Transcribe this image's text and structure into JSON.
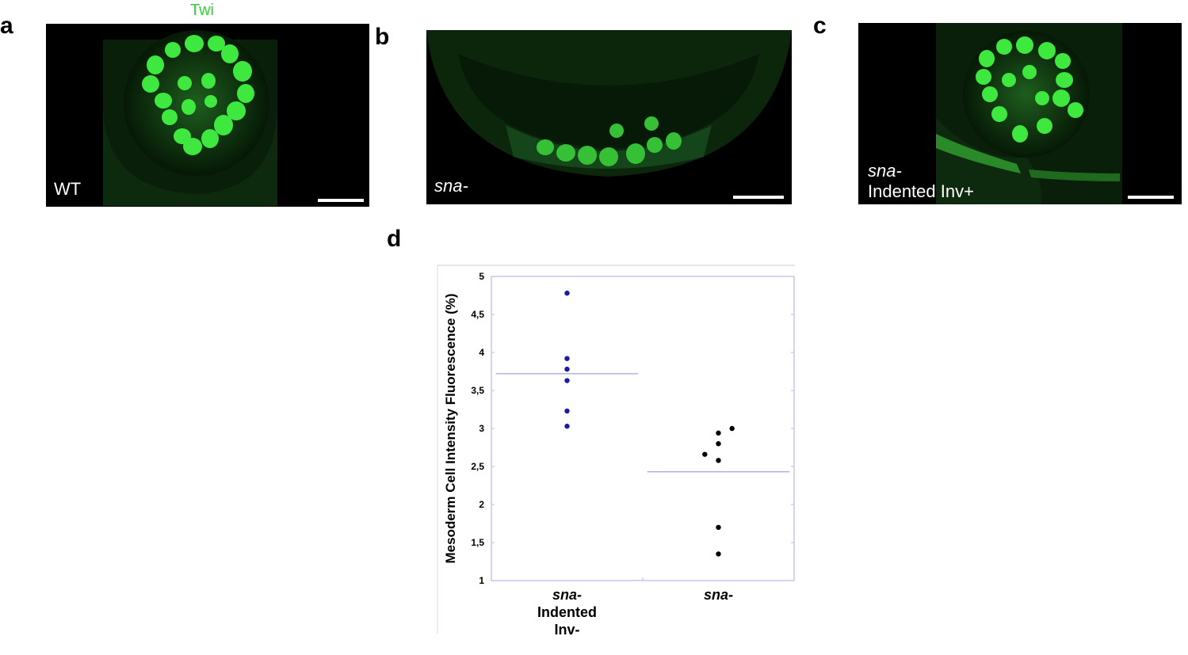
{
  "panels": {
    "a": {
      "letter": "a",
      "stain": "Twi",
      "genotype": "WT"
    },
    "b": {
      "letter": "b",
      "genotype": "sna-"
    },
    "c": {
      "letter": "c",
      "genotype_line1": "sna-",
      "genotype_line2": "Indented Inv+"
    },
    "d": {
      "letter": "d"
    }
  },
  "colors": {
    "stain_green": "#38d038",
    "nucleus_green": "#3ee83e",
    "series1": "#1a1aa8",
    "series2": "#000000",
    "mean_line": "#8a8ae0",
    "plot_frame": "#b8b8e8"
  },
  "chart_data": {
    "type": "scatter",
    "ylabel": "Mesoderm Cell Intensity Fluorescence (%)",
    "xlabel": "",
    "ylim": [
      1,
      5
    ],
    "yticks": [
      "1",
      "1,5",
      "2",
      "2,5",
      "3",
      "3,5",
      "4",
      "4,5",
      "5"
    ],
    "categories": [
      {
        "line1": "sna-",
        "line2": "Indented",
        "line3": "Inv-"
      },
      {
        "line1": "sna-",
        "line2": "",
        "line3": ""
      }
    ],
    "series": [
      {
        "category": 0,
        "color": "#1a1aa8",
        "mean": 3.72,
        "points": [
          {
            "x": 0,
            "y": 4.78
          },
          {
            "x": 0,
            "y": 3.92
          },
          {
            "x": 0,
            "y": 3.78
          },
          {
            "x": 0,
            "y": 3.63
          },
          {
            "x": 0,
            "y": 3.23
          },
          {
            "x": 0,
            "y": 3.03
          }
        ]
      },
      {
        "category": 1,
        "color": "#000000",
        "mean": 2.43,
        "points": [
          {
            "x": 0.1,
            "y": 3.0
          },
          {
            "x": 0,
            "y": 2.94
          },
          {
            "x": 0,
            "y": 2.8
          },
          {
            "x": -0.1,
            "y": 2.66
          },
          {
            "x": 0,
            "y": 2.58
          },
          {
            "x": 0,
            "y": 1.7
          },
          {
            "x": 0,
            "y": 1.35
          }
        ]
      }
    ]
  }
}
